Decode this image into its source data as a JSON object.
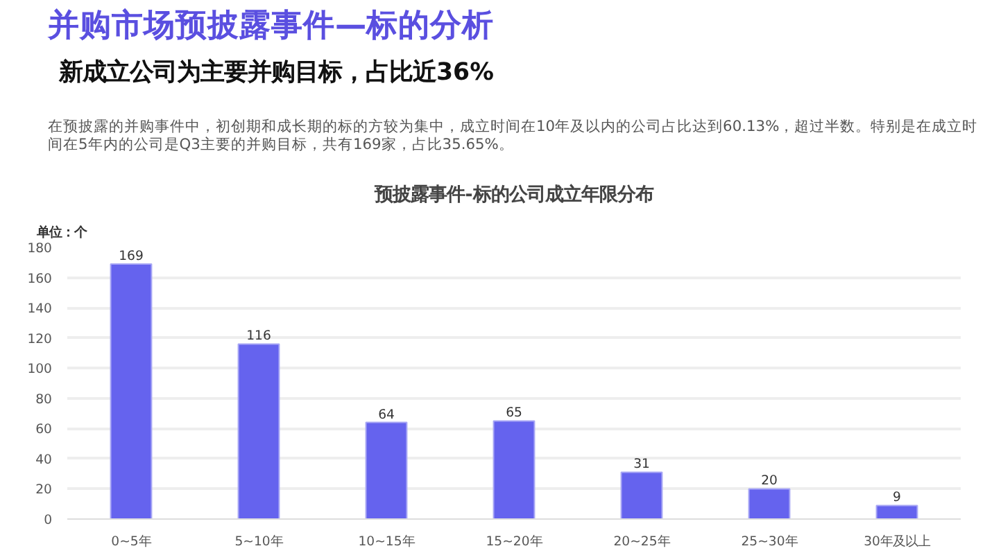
{
  "chart_data": {
    "type": "bar",
    "title": "并购市场预披露事件—标的分析",
    "subtitle": "新成立公司为主要并购目标，占比近36%",
    "annotations": [
      "在预披露的并购事件中，初创期和成长期的标的方较为集中，成立时间在10年及以内的公司占比达到60.13%，超过半数。特别是在成立时间在5年内的公司是Q3主要的并购目标，共有169家，占比35.65%。",
      "预披露事件-标的公司成立年限分布"
    ],
    "ylabel": "单位：个",
    "categories": [
      "0~5年",
      "5~10年",
      "10~15年",
      "15~20年",
      "20~25年",
      "25~30年",
      "30年及以上"
    ],
    "values": [
      169,
      116,
      64,
      65,
      31,
      20,
      9
    ],
    "color": "#6563ee",
    "ylim": [
      0,
      180
    ],
    "yticks": [
      0,
      20,
      40,
      60,
      80,
      100,
      120,
      140,
      160,
      180
    ],
    "grid": "y",
    "data_labels": true
  }
}
